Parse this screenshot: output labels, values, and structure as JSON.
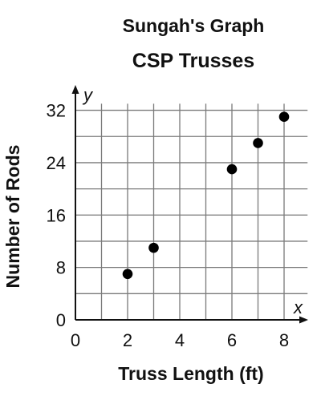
{
  "chart_data": {
    "type": "scatter",
    "supertitle": "Sungah's Graph",
    "title": "CSP Trusses",
    "xlabel": "Truss Length (ft)",
    "ylabel": "Number of Rods",
    "x_axis_var": "x",
    "y_axis_var": "y",
    "xlim": [
      0,
      8.9
    ],
    "ylim": [
      0,
      36
    ],
    "x_ticks": [
      0,
      2,
      4,
      6,
      8
    ],
    "y_ticks": [
      0,
      8,
      16,
      24,
      32
    ],
    "x_grid_step": 1,
    "y_grid_step": 4,
    "grid": true,
    "legend": "none",
    "point_color": "#000000",
    "points": [
      {
        "x": 2,
        "y": 7
      },
      {
        "x": 3,
        "y": 11
      },
      {
        "x": 6,
        "y": 23
      },
      {
        "x": 7,
        "y": 27
      },
      {
        "x": 8,
        "y": 31
      }
    ]
  }
}
